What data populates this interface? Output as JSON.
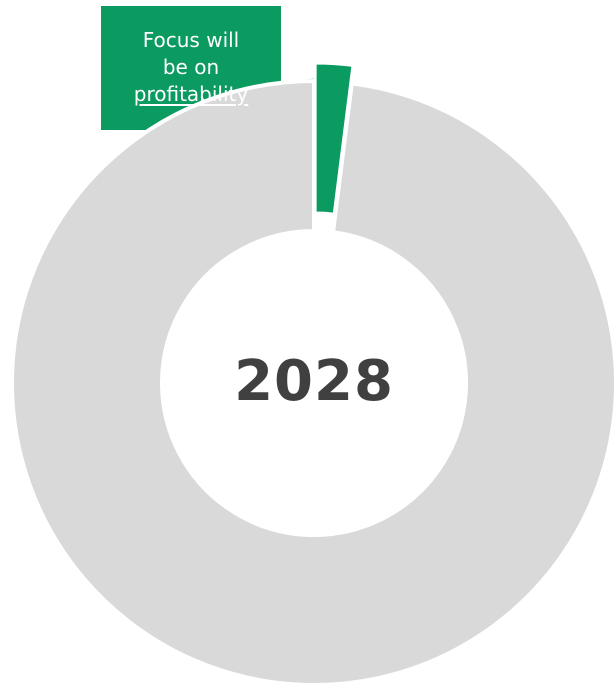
{
  "colors": {
    "highlight": "#0b9a5f",
    "remainder": "#d9d9d9",
    "center_text": "#404040",
    "callout_text": "#ffffff",
    "background": "#ffffff"
  },
  "chart_data": {
    "type": "pie",
    "variant": "donut",
    "categories": [
      "Focus will be on profitability",
      ""
    ],
    "values": [
      2,
      98
    ],
    "exploded_slice": 0,
    "center_label": "2028",
    "title": "",
    "legend": "none",
    "annotations": [
      {
        "slice": 0,
        "lines": [
          "Focus will",
          "be on",
          "profitability"
        ],
        "underline_line": 2
      }
    ]
  }
}
